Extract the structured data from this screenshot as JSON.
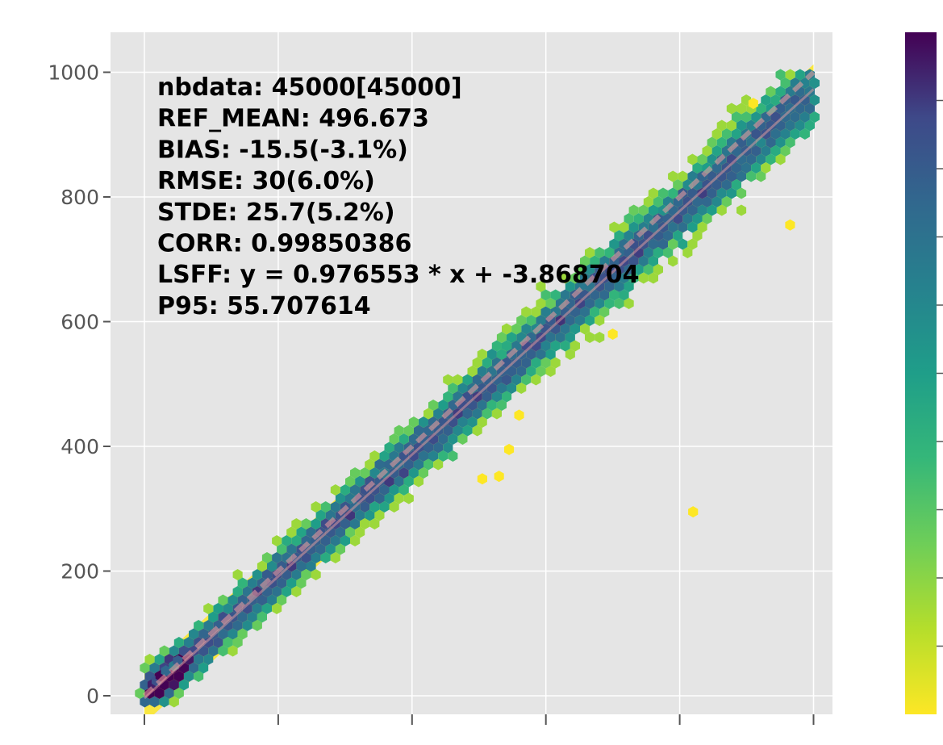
{
  "chart_data": {
    "type": "hexbin-scatter",
    "title": "",
    "xlabel": "",
    "ylabel": "",
    "xlim": [
      0,
      1000
    ],
    "ylim": [
      -30,
      1065
    ],
    "yticks": [
      {
        "value": 0,
        "label": "0"
      },
      {
        "value": 200,
        "label": "200"
      },
      {
        "value": 400,
        "label": "400"
      },
      {
        "value": 600,
        "label": "600"
      },
      {
        "value": 800,
        "label": "800"
      },
      {
        "value": 1000,
        "label": "1000"
      }
    ],
    "xticks": [
      0,
      200,
      400,
      600,
      800,
      1000
    ],
    "grid": true,
    "colormap": "viridis",
    "colorbar_ticks": 9,
    "colors": {
      "plot_background": "#e5e5e5",
      "grid": "#ffffff",
      "tick_color": "#555555",
      "low_density": "#fde725",
      "high_density": "#440154"
    },
    "diagonal_reference": {
      "from": [
        0,
        0
      ],
      "to": [
        1000,
        1000
      ]
    },
    "fit_line": {
      "slope": 0.976553,
      "intercept": -3.868704
    },
    "bias": -15.5,
    "stde": 25.7,
    "outliers": [
      {
        "x": 820,
        "y": 295
      },
      {
        "x": 545,
        "y": 395
      },
      {
        "x": 505,
        "y": 348
      },
      {
        "x": 530,
        "y": 352
      },
      {
        "x": 560,
        "y": 450
      },
      {
        "x": 965,
        "y": 755
      },
      {
        "x": 700,
        "y": 580
      },
      {
        "x": 910,
        "y": 950
      }
    ],
    "stats_annotation": [
      "nbdata: 45000[45000]",
      "REF_MEAN: 496.673",
      "BIAS: -15.5(-3.1%)",
      "RMSE: 30(6.0%)",
      "STDE: 25.7(5.2%)",
      "CORR: 0.99850386",
      "LSFF: y = 0.976553 * x + -3.868704",
      "P95: 55.707614"
    ]
  }
}
